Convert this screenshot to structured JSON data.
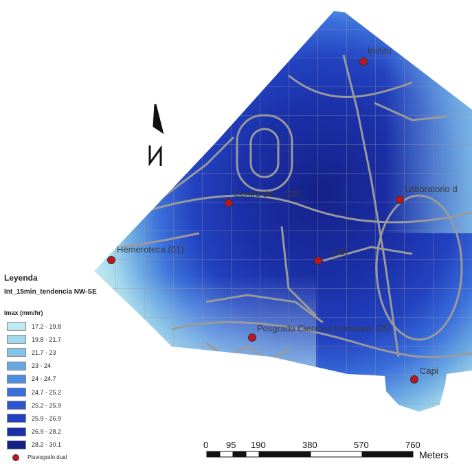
{
  "map": {
    "north_arrow_letter": "N",
    "stations": [
      {
        "id": "instituto",
        "label": "Institu"
      },
      {
        "id": "laboratorio",
        "label": "Laboratorio d"
      },
      {
        "id": "centro-vulcanologia",
        "label": "Centro de ... (08)"
      },
      {
        "id": "hemeroteca",
        "label": "Hemeroteca (01)"
      },
      {
        "id": "facultad",
        "label": "... (06)"
      },
      {
        "id": "posgrado",
        "label": "Posgrado Ciencias Humanas (05)"
      },
      {
        "id": "capilla",
        "label": "Capi"
      }
    ],
    "colors": {
      "station_marker": "#c0151e",
      "street_lines": "#9a9a9a",
      "intensity_ramp": [
        "#bfe8ef",
        "#a3d7ec",
        "#86c3e8",
        "#6aa8e2",
        "#4f8de0",
        "#3a6fdb",
        "#2c55cf",
        "#2342c0",
        "#1b30a8",
        "#152189"
      ]
    }
  },
  "legend": {
    "title": "Leyenda",
    "layer_name": "Int_15min_tendencia NW-SE",
    "field": "Imax (mm/hr)",
    "classes": [
      {
        "range": "17.2 - 19.8",
        "color": "#bfe8ef"
      },
      {
        "range": "19.8 - 21.7",
        "color": "#a3d7ec"
      },
      {
        "range": "21.7 - 23",
        "color": "#86c3e8"
      },
      {
        "range": "23 - 24",
        "color": "#6aa8e2"
      },
      {
        "range": "24 - 24.7",
        "color": "#4f8de0"
      },
      {
        "range": "24.7 - 25.2",
        "color": "#3a6fdb"
      },
      {
        "range": "25.2 - 25.9",
        "color": "#2c55cf"
      },
      {
        "range": "25.9 - 26.9",
        "color": "#2342c0"
      },
      {
        "range": "26.9 - 28.2",
        "color": "#1b30a8"
      },
      {
        "range": "28.2 - 30.1",
        "color": "#152189"
      }
    ],
    "point_label": "Pluviografo dual"
  },
  "scale_bar": {
    "ticks": [
      "0",
      "95",
      "190",
      "380",
      "570",
      "760"
    ],
    "unit": "Meters"
  }
}
